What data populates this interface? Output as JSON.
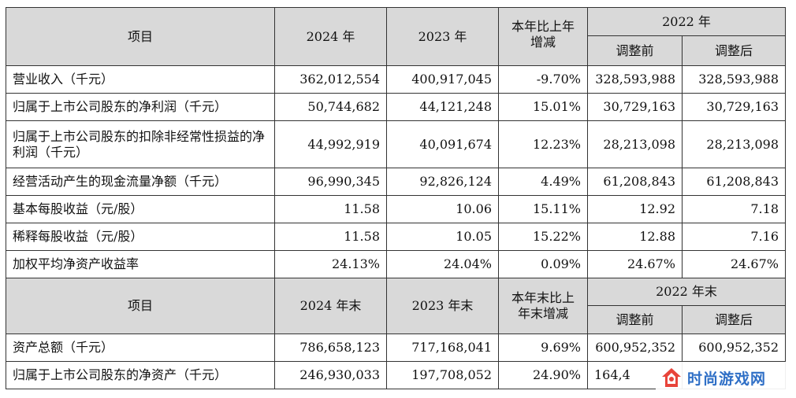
{
  "section1": {
    "header": {
      "item": "项目",
      "y2024": "2024 年",
      "y2023": "2023 年",
      "change_line1": "本年比上年",
      "change_line2": "增减",
      "y2022": "2022 年",
      "before": "调整前",
      "after": "调整后"
    },
    "rows": [
      {
        "label": "营业收入（千元）",
        "v2024": "362,012,554",
        "v2023": "400,917,045",
        "change": "-9.70%",
        "before": "328,593,988",
        "after": "328,593,988"
      },
      {
        "label": "归属于上市公司股东的净利润（千元）",
        "v2024": "50,744,682",
        "v2023": "44,121,248",
        "change": "15.01%",
        "before": "30,729,163",
        "after": "30,729,163"
      },
      {
        "label": "归属于上市公司股东的扣除非经常性损益的净利润（千元）",
        "v2024": "44,992,919",
        "v2023": "40,091,674",
        "change": "12.23%",
        "before": "28,213,098",
        "after": "28,213,098"
      },
      {
        "label": "经营活动产生的现金流量净额（千元）",
        "v2024": "96,990,345",
        "v2023": "92,826,124",
        "change": "4.49%",
        "before": "61,208,843",
        "after": "61,208,843"
      },
      {
        "label": "基本每股收益（元/股）",
        "v2024": "11.58",
        "v2023": "10.06",
        "change": "15.11%",
        "before": "12.92",
        "after": "7.18"
      },
      {
        "label": "稀释每股收益（元/股）",
        "v2024": "11.58",
        "v2023": "10.05",
        "change": "15.22%",
        "before": "12.88",
        "after": "7.16"
      },
      {
        "label": "加权平均净资产收益率",
        "v2024": "24.13%",
        "v2023": "24.04%",
        "change": "0.09%",
        "before": "24.67%",
        "after": "24.67%"
      }
    ]
  },
  "section2": {
    "header": {
      "item": "项目",
      "y2024": "2024 年末",
      "y2023": "2023 年末",
      "change_line1": "本年末比上",
      "change_line2": "年末增减",
      "y2022": "2022 年末",
      "before": "调整前",
      "after": "调整后"
    },
    "rows": [
      {
        "label": "资产总额（千元）",
        "v2024": "786,658,123",
        "v2023": "717,168,041",
        "change": "9.69%",
        "before": "600,952,352",
        "after": "600,952,352"
      },
      {
        "label": "归属于上市公司股东的净资产（千元）",
        "v2024": "246,930,033",
        "v2023": "197,708,052",
        "change": "24.90%",
        "before": "164,4",
        "after": ""
      }
    ]
  },
  "watermark": {
    "text": "时尚游戏网",
    "icon": "house-logo-icon",
    "color": "#2f6fc6",
    "accent": "#e8443a"
  }
}
